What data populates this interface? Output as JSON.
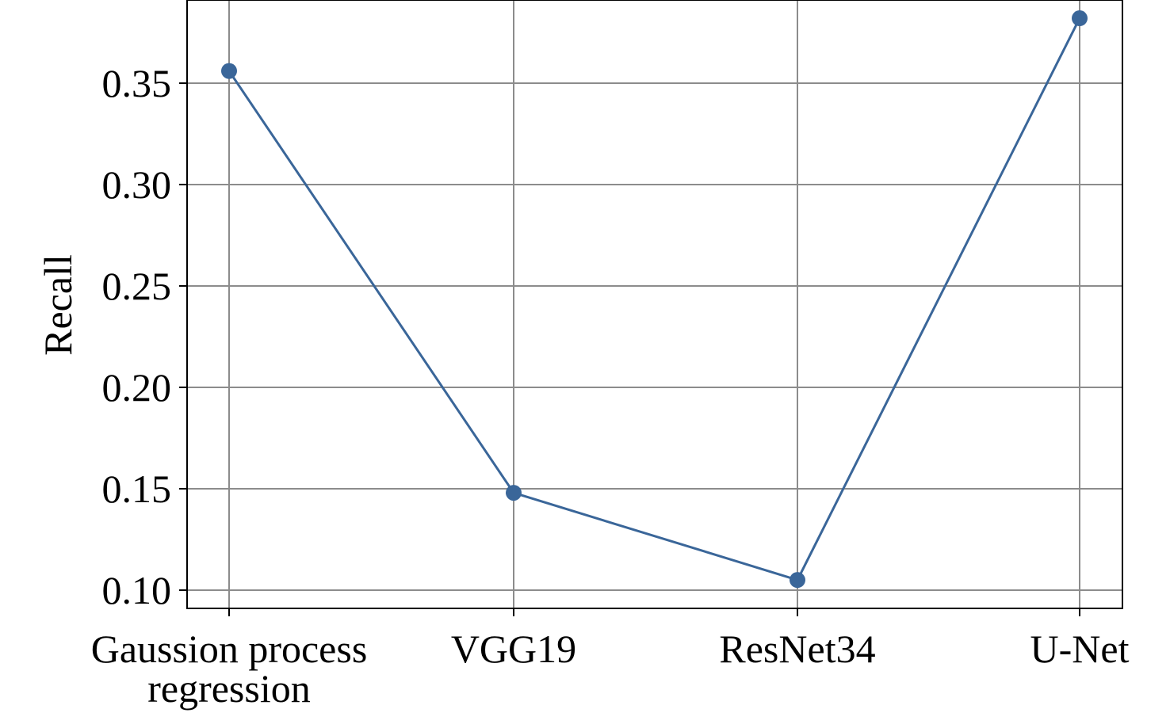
{
  "chart_data": {
    "type": "line",
    "title": "",
    "xlabel": "",
    "ylabel": "Recall",
    "categories": [
      [
        "Gaussion process",
        "regression"
      ],
      [
        "VGG19"
      ],
      [
        "ResNet34"
      ],
      [
        "U-Net"
      ]
    ],
    "series": [
      {
        "values": [
          0.356,
          0.148,
          0.105,
          0.382
        ],
        "color": "#3a6699"
      }
    ],
    "ylim": [
      0.091,
      0.391
    ],
    "yticks": [
      0.1,
      0.15,
      0.2,
      0.25,
      0.3,
      0.35
    ],
    "ytick_labels": [
      "0.10",
      "0.15",
      "0.20",
      "0.25",
      "0.30",
      "0.35"
    ],
    "grid": true,
    "legend": "none"
  }
}
